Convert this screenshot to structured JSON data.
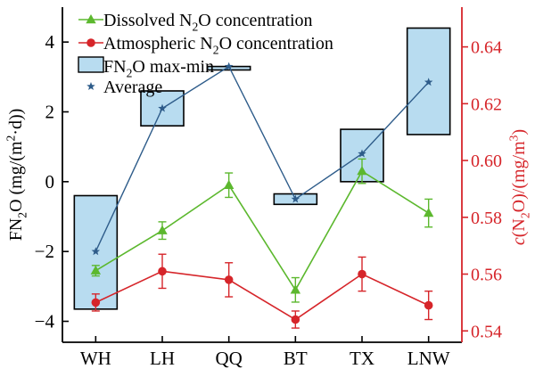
{
  "chart_data": {
    "type": "line",
    "categories": [
      "WH",
      "LH",
      "QQ",
      "BT",
      "TX",
      "LNW"
    ],
    "left_axis": {
      "label_parts": [
        {
          "text": "FN",
          "sub": false
        },
        {
          "text": "2",
          "sub": true
        },
        {
          "text": "O (mg/(m",
          "sub": false
        },
        {
          "text": "2",
          "sup": true
        },
        {
          "text": "·d))",
          "sub": false
        }
      ],
      "ylim": [
        -4.6,
        5.0
      ],
      "ticks": [
        4,
        2,
        0,
        -2,
        -4
      ],
      "tick_labels": [
        "4",
        "2",
        "0",
        "−2",
        "−4"
      ],
      "color": "#000000"
    },
    "right_axis": {
      "label_parts": [
        {
          "text": "c",
          "italic": true
        },
        {
          "text": "(N"
        },
        {
          "text": "2",
          "sub": true
        },
        {
          "text": "O)/(mg/m"
        },
        {
          "text": "3",
          "sup": true
        },
        {
          "text": ")"
        }
      ],
      "ylim": [
        0.536,
        0.654
      ],
      "ticks": [
        0.64,
        0.62,
        0.6,
        0.58,
        0.56,
        0.54
      ],
      "tick_labels": [
        "0.64",
        "0.62",
        "0.60",
        "0.58",
        "0.56",
        "0.54"
      ],
      "color": "#d6252a"
    },
    "series": [
      {
        "name": "Dissolved N2O concentration",
        "name_parts": [
          {
            "text": "Dissolved N"
          },
          {
            "text": "2",
            "sub": true
          },
          {
            "text": "O concentration"
          }
        ],
        "axis": "left",
        "marker": "triangle",
        "color": "#5cb82e",
        "values": [
          -2.55,
          -1.4,
          -0.1,
          -3.1,
          0.3,
          -0.9
        ],
        "err": [
          0.15,
          0.25,
          0.35,
          0.35,
          0.35,
          0.4
        ]
      },
      {
        "name": "Atmospheric N2O concentration",
        "name_parts": [
          {
            "text": "Atmospheric N"
          },
          {
            "text": "2",
            "sub": true
          },
          {
            "text": "O concentration"
          }
        ],
        "axis": "right",
        "marker": "circle",
        "color": "#d6252a",
        "values": [
          0.55,
          0.561,
          0.558,
          0.544,
          0.56,
          0.549
        ],
        "err": [
          0.003,
          0.006,
          0.006,
          0.003,
          0.006,
          0.005
        ]
      },
      {
        "name": "FN2O max-min",
        "name_parts": [
          {
            "text": "FN"
          },
          {
            "text": "2",
            "sub": true
          },
          {
            "text": "O max-min"
          }
        ],
        "axis": "left",
        "marker": "box",
        "color": "#b8dcf0",
        "edge": "#000000",
        "boxes": [
          [
            -3.65,
            -0.4
          ],
          [
            1.6,
            2.6
          ],
          [
            3.2,
            3.3
          ],
          [
            -0.65,
            -0.35
          ],
          [
            0.0,
            1.5
          ],
          [
            1.35,
            4.4
          ]
        ]
      },
      {
        "name": "Average",
        "name_parts": [
          {
            "text": "Average"
          }
        ],
        "axis": "left",
        "marker": "star",
        "color": "#2e5c8a",
        "values": [
          -2.0,
          2.1,
          3.3,
          -0.5,
          0.8,
          2.85
        ]
      }
    ],
    "legend_position": "top-left",
    "grid": false
  }
}
